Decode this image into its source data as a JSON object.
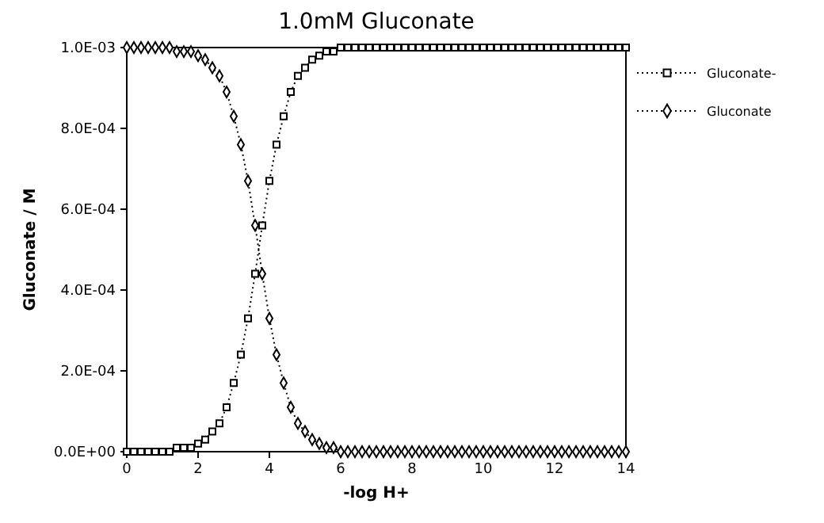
{
  "chart_data": {
    "type": "line",
    "title": "1.0mM Gluconate",
    "xlabel": "-log H+",
    "ylabel": "Gluconate / M",
    "x": [
      0,
      0.2,
      0.4,
      0.6,
      0.8,
      1,
      1.2,
      1.4,
      1.6,
      1.8,
      2,
      2.2,
      2.4,
      2.6,
      2.8,
      3,
      3.2,
      3.4,
      3.6,
      3.8,
      4,
      4.2,
      4.4,
      4.6,
      4.8,
      5,
      5.2,
      5.4,
      5.6,
      5.8,
      6,
      6.2,
      6.4,
      6.6,
      6.8,
      7,
      7.2,
      7.4,
      7.6,
      7.8,
      8,
      8.2,
      8.4,
      8.6,
      8.8,
      9,
      9.2,
      9.4,
      9.6,
      9.8,
      10,
      10.2,
      10.4,
      10.6,
      10.8,
      11,
      11.2,
      11.4,
      11.6,
      11.8,
      12,
      12.2,
      12.4,
      12.6,
      12.8,
      13,
      13.2,
      13.4,
      13.6,
      13.8,
      14
    ],
    "series": [
      {
        "name": "Gluconate-",
        "color": "#000000",
        "marker": "square",
        "values": [
          0,
          0,
          0,
          0,
          0,
          0,
          0,
          1e-05,
          1e-05,
          1e-05,
          2e-05,
          3e-05,
          5e-05,
          7e-05,
          0.00011,
          0.00017,
          0.00024,
          0.00033,
          0.00044,
          0.00056,
          0.00067,
          0.00076,
          0.00083,
          0.00089,
          0.00093,
          0.00095,
          0.00097,
          0.00098,
          0.00099,
          0.00099,
          0.001,
          0.001,
          0.001,
          0.001,
          0.001,
          0.001,
          0.001,
          0.001,
          0.001,
          0.001,
          0.001,
          0.001,
          0.001,
          0.001,
          0.001,
          0.001,
          0.001,
          0.001,
          0.001,
          0.001,
          0.001,
          0.001,
          0.001,
          0.001,
          0.001,
          0.001,
          0.001,
          0.001,
          0.001,
          0.001,
          0.001,
          0.001,
          0.001,
          0.001,
          0.001,
          0.001,
          0.001,
          0.001,
          0.001,
          0.001,
          0.001
        ]
      },
      {
        "name": "Gluconate",
        "color": "#000000",
        "marker": "diamond",
        "values": [
          0.001,
          0.001,
          0.001,
          0.001,
          0.001,
          0.001,
          0.001,
          0.00099,
          0.00099,
          0.00099,
          0.00098,
          0.00097,
          0.00095,
          0.00093,
          0.00089,
          0.00083,
          0.00076,
          0.00067,
          0.00056,
          0.00044,
          0.00033,
          0.00024,
          0.00017,
          0.00011,
          7e-05,
          5e-05,
          3e-05,
          2e-05,
          1e-05,
          1e-05,
          0,
          0,
          0,
          0,
          0,
          0,
          0,
          0,
          0,
          0,
          0,
          0,
          0,
          0,
          0,
          0,
          0,
          0,
          0,
          0,
          0,
          0,
          0,
          0,
          0,
          0,
          0,
          0,
          0,
          0,
          0,
          0,
          0,
          0,
          0,
          0,
          0,
          0,
          0,
          0,
          0
        ]
      }
    ],
    "xlim": [
      0,
      14
    ],
    "xticks": [
      0,
      2,
      4,
      6,
      8,
      10,
      12,
      14
    ],
    "ylim": [
      0,
      0.001
    ],
    "yticks": [
      {
        "value": 0,
        "label": "0.0E+00"
      },
      {
        "value": 0.0002,
        "label": "2.0E-04"
      },
      {
        "value": 0.0004,
        "label": "4.0E-04"
      },
      {
        "value": 0.0006,
        "label": "6.0E-04"
      },
      {
        "value": 0.0008,
        "label": "8.0E-04"
      },
      {
        "value": 0.001,
        "label": "1.0E-03"
      }
    ],
    "grid": false,
    "legend": "top right",
    "line_style": "dotted"
  }
}
